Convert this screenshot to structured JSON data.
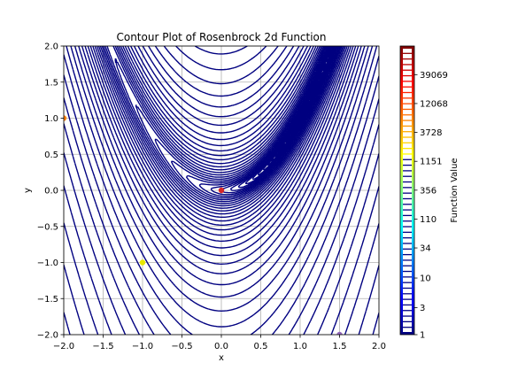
{
  "chart_data": {
    "type": "contour",
    "title": "Contour Plot of Rosenbrock 2d Function",
    "xlabel": "x",
    "ylabel": "y",
    "xlim": [
      -2.0,
      2.0
    ],
    "ylim": [
      -2.0,
      2.0
    ],
    "xticks": [
      "−2.0",
      "−1.5",
      "−1.0",
      "−0.5",
      "0.0",
      "0.5",
      "1.0",
      "1.5",
      "2.0"
    ],
    "yticks": [
      "−2.0",
      "−1.5",
      "−1.0",
      "−0.5",
      "0.0",
      "0.5",
      "1.0",
      "1.5",
      "2.0"
    ],
    "grid": true,
    "function": "(1 - x)^2 + 100 (y - x^2)^2",
    "colorscale": "log",
    "colormap": "jet",
    "colorbar": {
      "label": "Function Value",
      "range": [
        1,
        125000
      ],
      "ticks": [
        "1",
        "3",
        "10",
        "34",
        "110",
        "356",
        "1151",
        "3728",
        "12068",
        "39069"
      ],
      "tick_values": [
        1,
        3,
        10,
        34,
        110,
        356,
        1151,
        3728,
        12068,
        39069
      ]
    },
    "markers": [
      {
        "x": 0.0,
        "y": 0.0,
        "color": "#d62728"
      },
      {
        "x": -2.0,
        "y": 1.0,
        "color": "#ff7f0e"
      },
      {
        "x": -1.0,
        "y": -1.0,
        "color": "#e8e800"
      },
      {
        "x": 1.5,
        "y": -2.0,
        "color": "#9467bd"
      }
    ]
  }
}
